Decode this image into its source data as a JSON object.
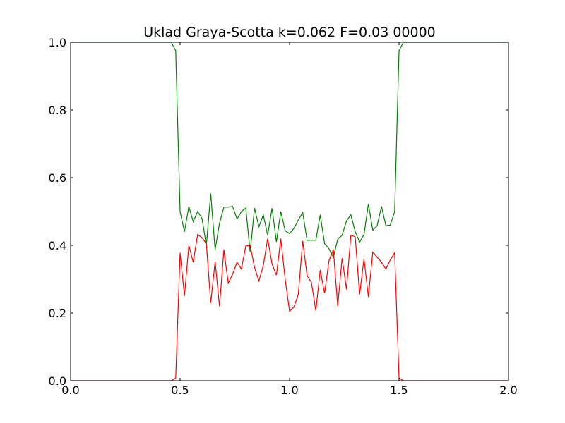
{
  "chart_data": {
    "type": "line",
    "title": "Uklad Graya-Scotta k=0.062 F=0.03 00000",
    "xlabel": "",
    "ylabel": "",
    "xlim": [
      0.0,
      2.0
    ],
    "ylim": [
      0.0,
      1.0
    ],
    "xticks": [
      "0.0",
      "0.5",
      "1.0",
      "1.5",
      "2.0"
    ],
    "yticks": [
      "0.0",
      "0.2",
      "0.4",
      "0.6",
      "0.8",
      "1.0"
    ],
    "grid": false,
    "legend": "none",
    "series": [
      {
        "color": "#008000",
        "points": [
          [
            0.0,
            1.0
          ],
          [
            0.46,
            1.0
          ],
          [
            0.48,
            0.975
          ],
          [
            0.5,
            0.5
          ],
          [
            0.52,
            0.44
          ],
          [
            0.54,
            0.515
          ],
          [
            0.56,
            0.47
          ],
          [
            0.58,
            0.5
          ],
          [
            0.6,
            0.48
          ],
          [
            0.62,
            0.4
          ],
          [
            0.64,
            0.553
          ],
          [
            0.66,
            0.387
          ],
          [
            0.68,
            0.465
          ],
          [
            0.7,
            0.513
          ],
          [
            0.72,
            0.513
          ],
          [
            0.74,
            0.515
          ],
          [
            0.76,
            0.478
          ],
          [
            0.78,
            0.5
          ],
          [
            0.8,
            0.51
          ],
          [
            0.82,
            0.38
          ],
          [
            0.84,
            0.51
          ],
          [
            0.86,
            0.455
          ],
          [
            0.88,
            0.49
          ],
          [
            0.9,
            0.43
          ],
          [
            0.92,
            0.51
          ],
          [
            0.94,
            0.41
          ],
          [
            0.96,
            0.5
          ],
          [
            0.98,
            0.443
          ],
          [
            1.0,
            0.435
          ],
          [
            1.02,
            0.45
          ],
          [
            1.04,
            0.475
          ],
          [
            1.06,
            0.497
          ],
          [
            1.08,
            0.415
          ],
          [
            1.1,
            0.415
          ],
          [
            1.12,
            0.415
          ],
          [
            1.14,
            0.49
          ],
          [
            1.16,
            0.405
          ],
          [
            1.18,
            0.39
          ],
          [
            1.2,
            0.365
          ],
          [
            1.22,
            0.418
          ],
          [
            1.24,
            0.43
          ],
          [
            1.26,
            0.472
          ],
          [
            1.28,
            0.49
          ],
          [
            1.3,
            0.44
          ],
          [
            1.32,
            0.41
          ],
          [
            1.34,
            0.432
          ],
          [
            1.36,
            0.522
          ],
          [
            1.38,
            0.445
          ],
          [
            1.4,
            0.458
          ],
          [
            1.42,
            0.515
          ],
          [
            1.44,
            0.458
          ],
          [
            1.46,
            0.46
          ],
          [
            1.48,
            0.5
          ],
          [
            1.5,
            0.975
          ],
          [
            1.52,
            1.0
          ],
          [
            2.0,
            1.0
          ]
        ]
      },
      {
        "color": "#ff0000",
        "points": [
          [
            0.0,
            0.0
          ],
          [
            0.46,
            0.0
          ],
          [
            0.48,
            0.008
          ],
          [
            0.5,
            0.378
          ],
          [
            0.52,
            0.25
          ],
          [
            0.54,
            0.4
          ],
          [
            0.56,
            0.35
          ],
          [
            0.58,
            0.432
          ],
          [
            0.6,
            0.423
          ],
          [
            0.62,
            0.405
          ],
          [
            0.64,
            0.23
          ],
          [
            0.66,
            0.352
          ],
          [
            0.68,
            0.22
          ],
          [
            0.7,
            0.387
          ],
          [
            0.72,
            0.288
          ],
          [
            0.74,
            0.315
          ],
          [
            0.76,
            0.35
          ],
          [
            0.78,
            0.33
          ],
          [
            0.8,
            0.398
          ],
          [
            0.82,
            0.4
          ],
          [
            0.84,
            0.335
          ],
          [
            0.86,
            0.295
          ],
          [
            0.88,
            0.34
          ],
          [
            0.9,
            0.42
          ],
          [
            0.92,
            0.345
          ],
          [
            0.94,
            0.312
          ],
          [
            0.96,
            0.42
          ],
          [
            0.98,
            0.3
          ],
          [
            1.0,
            0.205
          ],
          [
            1.02,
            0.218
          ],
          [
            1.04,
            0.255
          ],
          [
            1.06,
            0.413
          ],
          [
            1.08,
            0.31
          ],
          [
            1.1,
            0.29
          ],
          [
            1.12,
            0.207
          ],
          [
            1.14,
            0.327
          ],
          [
            1.16,
            0.258
          ],
          [
            1.18,
            0.355
          ],
          [
            1.2,
            0.388
          ],
          [
            1.22,
            0.22
          ],
          [
            1.24,
            0.362
          ],
          [
            1.26,
            0.27
          ],
          [
            1.28,
            0.43
          ],
          [
            1.3,
            0.425
          ],
          [
            1.32,
            0.255
          ],
          [
            1.34,
            0.36
          ],
          [
            1.36,
            0.248
          ],
          [
            1.38,
            0.38
          ],
          [
            1.4,
            0.365
          ],
          [
            1.42,
            0.35
          ],
          [
            1.44,
            0.33
          ],
          [
            1.46,
            0.357
          ],
          [
            1.48,
            0.378
          ],
          [
            1.5,
            0.008
          ],
          [
            1.52,
            0.0
          ],
          [
            2.0,
            0.0
          ]
        ]
      }
    ]
  }
}
